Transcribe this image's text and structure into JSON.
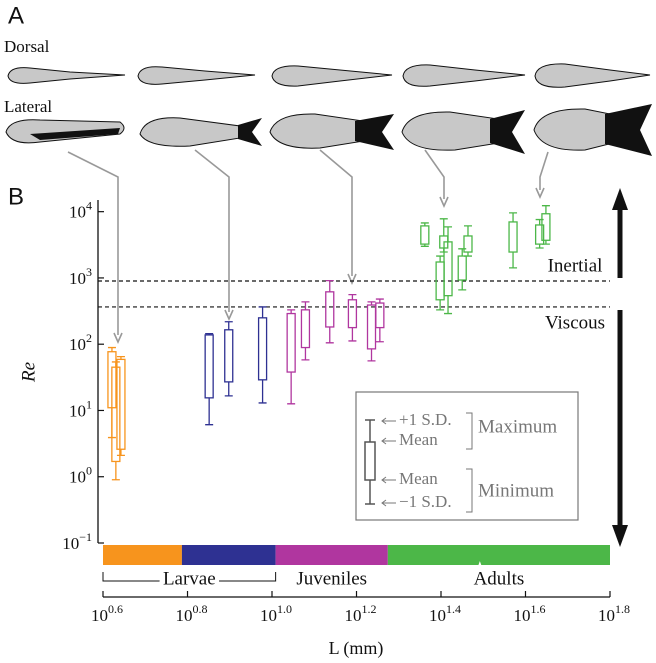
{
  "panel_a": {
    "label": "A",
    "views": [
      "Dorsal",
      "Lateral"
    ]
  },
  "chart_data": {
    "type": "box",
    "label": "B",
    "ylabel": "Re",
    "xlabel": "L (mm)",
    "xlog": true,
    "ylog": true,
    "xlim": [
      3.981,
      63.1
    ],
    "ylim": [
      0.1,
      15000
    ],
    "xticks": [
      {
        "value": 3.981,
        "label": "10",
        "exponent": "0.6"
      },
      {
        "value": 6.31,
        "label": "10",
        "exponent": "0.8"
      },
      {
        "value": 10,
        "label": "10",
        "exponent": "1.0"
      },
      {
        "value": 15.85,
        "label": "10",
        "exponent": "1.2"
      },
      {
        "value": 25.12,
        "label": "10",
        "exponent": "1.4"
      },
      {
        "value": 39.81,
        "label": "10",
        "exponent": "1.6"
      },
      {
        "value": 63.1,
        "label": "10",
        "exponent": "1.8"
      }
    ],
    "yticks": [
      {
        "value": 0.1,
        "label": "10",
        "exponent": "−1"
      },
      {
        "value": 1,
        "label": "10",
        "exponent": "0"
      },
      {
        "value": 10,
        "label": "10",
        "exponent": "1"
      },
      {
        "value": 100,
        "label": "10",
        "exponent": "2"
      },
      {
        "value": 1000,
        "label": "10",
        "exponent": "3"
      },
      {
        "value": 10000,
        "label": "10",
        "exponent": "4"
      }
    ],
    "thresholds": [
      {
        "value": 900,
        "label": "Inertial"
      },
      {
        "value": 365,
        "label": "Viscous"
      }
    ],
    "series": [
      {
        "color": "#f7941d",
        "band": [
          3.981,
          6.12
        ],
        "x": [
          4.18,
          4.27,
          4.39
        ],
        "max_sd": [
          89,
          54,
          65
        ],
        "max_mean": [
          77,
          45,
          59
        ],
        "min_mean": [
          11,
          1.7,
          2.6
        ],
        "min_sd": [
          3.9,
          0.9,
          2.1
        ]
      },
      {
        "color": "#2e3192",
        "band": [
          6.12,
          10.2
        ],
        "x": [
          7.1,
          7.9,
          9.5
        ],
        "max_sd": [
          144,
          218,
          365
        ],
        "max_mean": [
          138,
          165,
          250
        ],
        "min_mean": [
          15.5,
          27,
          29
        ],
        "min_sd": [
          6.1,
          16.6,
          13
        ]
      },
      {
        "color": "#b0369f",
        "band": [
          10.2,
          18.8
        ],
        "x": [
          11.1,
          12.0,
          13.7,
          15.5,
          17.2,
          18.0
        ],
        "max_sd": [
          330,
          435,
          910,
          560,
          435,
          480
        ],
        "max_mean": [
          290,
          330,
          617,
          468,
          390,
          418
        ],
        "min_mean": [
          38,
          89,
          182,
          178,
          85,
          178
        ],
        "min_sd": [
          12.6,
          58,
          105,
          112,
          56,
          109
        ]
      },
      {
        "color": "#4cb748",
        "band": [
          18.8,
          63.1
        ],
        "x": [
          23.0,
          25.0,
          25.5,
          26.1,
          28.2,
          29.1,
          37.2,
          43.0,
          44.5
        ],
        "max_sd": [
          6760,
          2140,
          7800,
          5900,
          2750,
          6100,
          9600,
          7600,
          12300
        ],
        "max_mean": [
          6100,
          1740,
          4300,
          3500,
          2140,
          4300,
          7000,
          6300,
          9300
        ],
        "min_mean": [
          3240,
          468,
          2830,
          540,
          930,
          2460,
          2460,
          3240,
          3700
        ],
        "min_sd": [
          3000,
          330,
          2460,
          290,
          660,
          2140,
          1420,
          2830,
          3240
        ]
      }
    ],
    "stages": [
      {
        "label": "Larvae",
        "range": [
          3.981,
          10.2
        ]
      },
      {
        "label": "Juveniles",
        "range": [
          10.2,
          18.8
        ]
      },
      {
        "label": "Adults",
        "range": [
          18.8,
          63.1
        ]
      }
    ],
    "legend": {
      "items": [
        "+1 S.D.",
        "Mean",
        "Mean",
        "−1 S.D."
      ],
      "groups": [
        "Maximum",
        "Minimum"
      ]
    }
  }
}
